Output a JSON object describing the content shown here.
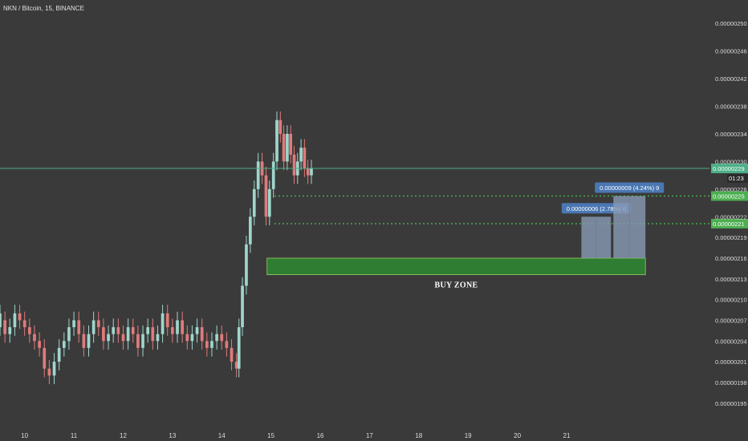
{
  "header": {
    "symbol": "NKN / Bitcoin, 15, BINANCE"
  },
  "chart_data": {
    "type": "candlestick",
    "title": "NKN / Bitcoin, 15, BINANCE",
    "y_axis": {
      "position": "right",
      "range": [
        1.93e-06,
        2.52e-06
      ],
      "ticks": [
        "0.00000250",
        "0.00000246",
        "0.00000242",
        "0.00000238",
        "0.00000234",
        "0.00000230",
        "0.00000226",
        "0.00000222",
        "0.00000219",
        "0.00000216",
        "0.00000213",
        "0.00000210",
        "0.00000207",
        "0.00000204",
        "0.00000201",
        "0.00000198",
        "0.00000195"
      ]
    },
    "x_axis": {
      "range": [
        9.5,
        23.9
      ],
      "ticks": [
        "10",
        "11",
        "12",
        "13",
        "14",
        "15",
        "16",
        "17",
        "18",
        "19",
        "20",
        "21"
      ]
    },
    "grid": false,
    "current_price": {
      "value": "0.00000229",
      "countdown": "01:23",
      "color": "#4caf87"
    },
    "levels": [
      {
        "value": "0.00000225",
        "style": "dotted",
        "color": "#4caf50"
      },
      {
        "value": "0.00000221",
        "style": "dotted",
        "color": "#4caf50"
      }
    ],
    "buy_zone": {
      "label": "BUY ZONE",
      "x_from": 14.92,
      "x_to": 22.6,
      "y_low": 2.136e-06,
      "y_high": 2.16e-06,
      "color": "#2e7d32"
    },
    "measurements": [
      {
        "label": "0.00000006 (2.78%) 6",
        "x_from": 21.3,
        "x_to": 21.9,
        "y_low": 2.16e-06,
        "y_high": 2.22e-06
      },
      {
        "label": "0.00000009 (4.24%) 9",
        "x_from": 21.95,
        "x_to": 22.6,
        "y_low": 2.16e-06,
        "y_high": 2.25e-06
      }
    ],
    "candle_colors": {
      "up": "#9fd6cc",
      "down": "#e07b7b"
    },
    "candles": [
      [
        9.5,
        2.06e-06,
        2.08e-06
      ],
      [
        9.6,
        2.07e-06,
        2.05e-06
      ],
      [
        9.7,
        2.05e-06,
        2.06e-06
      ],
      [
        9.8,
        2.06e-06,
        2.08e-06
      ],
      [
        9.9,
        2.08e-06,
        2.07e-06
      ],
      [
        10.0,
        2.07e-06,
        2.06e-06
      ],
      [
        10.1,
        2.06e-06,
        2.05e-06
      ],
      [
        10.2,
        2.05e-06,
        2.04e-06
      ],
      [
        10.3,
        2.04e-06,
        2.03e-06
      ],
      [
        10.4,
        2.03e-06,
        2e-06
      ],
      [
        10.5,
        2e-06,
        1.99e-06
      ],
      [
        10.6,
        1.99e-06,
        2.01e-06
      ],
      [
        10.7,
        2.01e-06,
        2.03e-06
      ],
      [
        10.8,
        2.03e-06,
        2.04e-06
      ],
      [
        10.9,
        2.04e-06,
        2.06e-06
      ],
      [
        11.0,
        2.06e-06,
        2.07e-06
      ],
      [
        11.1,
        2.07e-06,
        2.05e-06
      ],
      [
        11.2,
        2.05e-06,
        2.03e-06
      ],
      [
        11.3,
        2.03e-06,
        2.05e-06
      ],
      [
        11.4,
        2.05e-06,
        2.07e-06
      ],
      [
        11.5,
        2.07e-06,
        2.06e-06
      ],
      [
        11.6,
        2.06e-06,
        2.04e-06
      ],
      [
        11.7,
        2.04e-06,
        2.05e-06
      ],
      [
        11.8,
        2.05e-06,
        2.06e-06
      ],
      [
        11.9,
        2.06e-06,
        2.05e-06
      ],
      [
        12.0,
        2.05e-06,
        2.04e-06
      ],
      [
        12.1,
        2.04e-06,
        2.06e-06
      ],
      [
        12.2,
        2.06e-06,
        2.05e-06
      ],
      [
        12.3,
        2.05e-06,
        2.03e-06
      ],
      [
        12.4,
        2.03e-06,
        2.05e-06
      ],
      [
        12.5,
        2.05e-06,
        2.06e-06
      ],
      [
        12.6,
        2.06e-06,
        2.04e-06
      ],
      [
        12.7,
        2.04e-06,
        2.05e-06
      ],
      [
        12.8,
        2.05e-06,
        2.08e-06
      ],
      [
        12.9,
        2.08e-06,
        2.06e-06
      ],
      [
        13.0,
        2.06e-06,
        2.05e-06
      ],
      [
        13.1,
        2.05e-06,
        2.07e-06
      ],
      [
        13.2,
        2.07e-06,
        2.05e-06
      ],
      [
        13.3,
        2.05e-06,
        2.04e-06
      ],
      [
        13.4,
        2.04e-06,
        2.05e-06
      ],
      [
        13.5,
        2.05e-06,
        2.06e-06
      ],
      [
        13.6,
        2.06e-06,
        2.04e-06
      ],
      [
        13.7,
        2.04e-06,
        2.03e-06
      ],
      [
        13.8,
        2.03e-06,
        2.04e-06
      ],
      [
        13.9,
        2.04e-06,
        2.05e-06
      ],
      [
        14.0,
        2.05e-06,
        2.04e-06
      ],
      [
        14.1,
        2.04e-06,
        2.03e-06
      ],
      [
        14.2,
        2.03e-06,
        2.01e-06
      ],
      [
        14.3,
        2.01e-06,
        2e-06
      ],
      [
        14.35,
        2e-06,
        2.06e-06
      ],
      [
        14.42,
        2.06e-06,
        2.12e-06
      ],
      [
        14.5,
        2.12e-06,
        2.18e-06
      ],
      [
        14.58,
        2.18e-06,
        2.22e-06
      ],
      [
        14.66,
        2.22e-06,
        2.26e-06
      ],
      [
        14.74,
        2.26e-06,
        2.3e-06
      ],
      [
        14.82,
        2.3e-06,
        2.28e-06
      ],
      [
        14.9,
        2.28e-06,
        2.22e-06
      ],
      [
        14.97,
        2.22e-06,
        2.26e-06
      ],
      [
        15.05,
        2.26e-06,
        2.3e-06
      ],
      [
        15.12,
        2.3e-06,
        2.36e-06
      ],
      [
        15.19,
        2.36e-06,
        2.34e-06
      ],
      [
        15.26,
        2.34e-06,
        2.3e-06
      ],
      [
        15.33,
        2.3e-06,
        2.34e-06
      ],
      [
        15.4,
        2.34e-06,
        2.31e-06
      ],
      [
        15.47,
        2.31e-06,
        2.28e-06
      ],
      [
        15.54,
        2.28e-06,
        2.3e-06
      ],
      [
        15.61,
        2.3e-06,
        2.32e-06
      ],
      [
        15.68,
        2.32e-06,
        2.29e-06
      ],
      [
        15.75,
        2.29e-06,
        2.28e-06
      ],
      [
        15.82,
        2.28e-06,
        2.29e-06
      ]
    ]
  }
}
